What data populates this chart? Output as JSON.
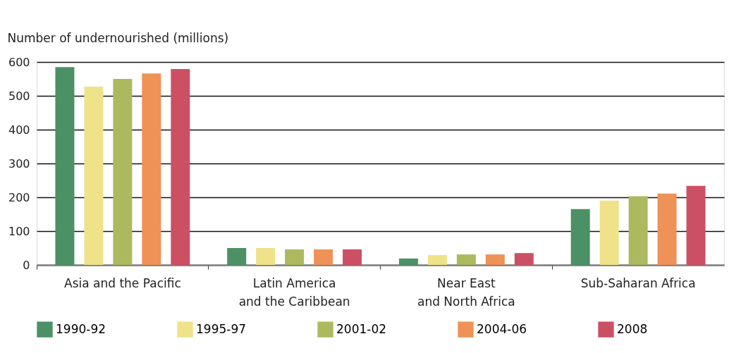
{
  "chart_data": {
    "type": "bar",
    "ylabel": "Number of undernourished (millions)",
    "categories": [
      "Asia and the Pacific",
      "Latin America\nand the Caribbean",
      "Near East\nand North Africa",
      "Sub-Saharan Africa"
    ],
    "series": [
      {
        "name": "1990-92",
        "color": "#4c9165",
        "values": [
          585,
          50,
          19,
          165
        ]
      },
      {
        "name": "1995-97",
        "color": "#efe289",
        "values": [
          527,
          50,
          29,
          190
        ]
      },
      {
        "name": "2001-02",
        "color": "#adb95e",
        "values": [
          550,
          46,
          31,
          203
        ]
      },
      {
        "name": "2004-06",
        "color": "#ee9258",
        "values": [
          566,
          46,
          31,
          211
        ]
      },
      {
        "name": "2008",
        "color": "#cc5063",
        "values": [
          579,
          46,
          35,
          234
        ]
      }
    ],
    "ylim": [
      0,
      600
    ],
    "yticks": [
      0,
      100,
      200,
      300,
      400,
      500,
      600
    ],
    "grid": "y",
    "legend": "bottom"
  }
}
